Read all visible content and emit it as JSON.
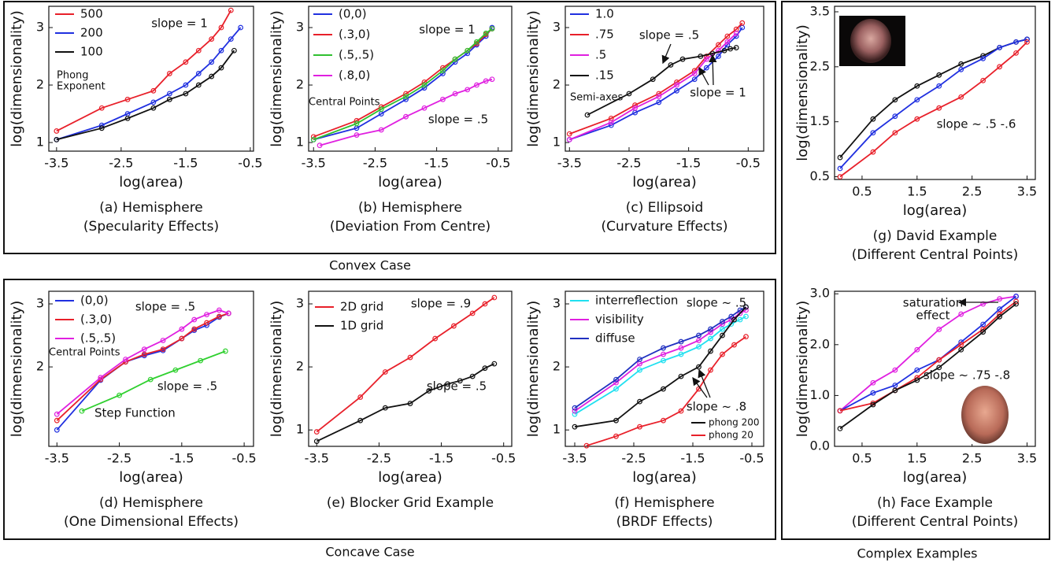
{
  "sections": [
    "Convex Case",
    "Concave Case",
    "Complex Examples"
  ],
  "chart_data": [
    {
      "type": "line",
      "caption": [
        "(a) Hemisphere",
        "(Specularity Effects)"
      ],
      "xlabel": "log(area)",
      "ylabel": "log(dimensionality)",
      "xlim": [
        -3.62,
        -0.45
      ],
      "ylim": [
        0.85,
        3.37
      ],
      "xticks": [
        -3.5,
        -2.5,
        -1.5,
        -0.5
      ],
      "yticks": [
        1,
        2,
        3
      ],
      "legend_title": [
        "Phong",
        "Exponent"
      ],
      "annotations": [
        "slope = 1"
      ],
      "series": [
        {
          "name": "500",
          "color": "#e8202a",
          "x": [
            -3.5,
            -2.8,
            -2.4,
            -2.0,
            -1.75,
            -1.5,
            -1.3,
            -1.1,
            -0.95,
            -0.8
          ],
          "values": [
            1.2,
            1.6,
            1.75,
            1.9,
            2.2,
            2.4,
            2.6,
            2.8,
            3.0,
            3.3
          ]
        },
        {
          "name": "200",
          "color": "#2030e0",
          "x": [
            -3.5,
            -2.8,
            -2.4,
            -2.0,
            -1.75,
            -1.5,
            -1.3,
            -1.1,
            -0.95,
            -0.8,
            -0.65
          ],
          "values": [
            1.05,
            1.3,
            1.5,
            1.7,
            1.85,
            2.0,
            2.2,
            2.4,
            2.6,
            2.8,
            3.0
          ]
        },
        {
          "name": "100",
          "color": "#111111",
          "x": [
            -3.5,
            -2.8,
            -2.4,
            -2.0,
            -1.75,
            -1.5,
            -1.3,
            -1.1,
            -0.95,
            -0.75
          ],
          "values": [
            1.05,
            1.25,
            1.42,
            1.6,
            1.75,
            1.85,
            2.0,
            2.15,
            2.3,
            2.6
          ]
        }
      ]
    },
    {
      "type": "line",
      "caption": [
        "(b) Hemisphere",
        "(Deviation From Centre)"
      ],
      "xlabel": "log(area)",
      "ylabel": "log(dimensionality)",
      "xlim": [
        -3.58,
        -0.28
      ],
      "ylim": [
        0.85,
        3.37
      ],
      "xticks": [
        -3.5,
        -2.5,
        -1.5,
        -0.5
      ],
      "yticks": [
        1,
        2,
        3
      ],
      "legend_title": [
        "Central Points"
      ],
      "annotations": [
        "slope = 1",
        "slope = .5"
      ],
      "series": [
        {
          "name": "(0,0)",
          "color": "#2030e0",
          "x": [
            -3.5,
            -2.8,
            -2.4,
            -2.0,
            -1.7,
            -1.4,
            -1.2,
            -1.0,
            -0.85,
            -0.7,
            -0.6
          ],
          "values": [
            1.05,
            1.25,
            1.5,
            1.75,
            1.95,
            2.2,
            2.4,
            2.55,
            2.7,
            2.85,
            3.0
          ]
        },
        {
          "name": "(.3,0)",
          "color": "#e8202a",
          "x": [
            -3.5,
            -2.8,
            -2.4,
            -2.0,
            -1.7,
            -1.4,
            -1.2,
            -1.0,
            -0.85,
            -0.7,
            -0.6
          ],
          "values": [
            1.1,
            1.38,
            1.62,
            1.85,
            2.05,
            2.3,
            2.45,
            2.6,
            2.72,
            2.88,
            2.98
          ]
        },
        {
          "name": "(.5,.5)",
          "color": "#30c030",
          "x": [
            -3.5,
            -2.8,
            -2.4,
            -2.0,
            -1.7,
            -1.4,
            -1.2,
            -1.0,
            -0.85,
            -0.7,
            -0.6
          ],
          "values": [
            1.05,
            1.33,
            1.58,
            1.8,
            2.0,
            2.25,
            2.45,
            2.6,
            2.75,
            2.9,
            2.98
          ]
        },
        {
          "name": "(.8,0)",
          "color": "#e020e0",
          "x": [
            -3.4,
            -2.8,
            -2.4,
            -2.0,
            -1.7,
            -1.4,
            -1.2,
            -1.0,
            -0.85,
            -0.7,
            -0.6
          ],
          "values": [
            0.95,
            1.13,
            1.22,
            1.45,
            1.6,
            1.75,
            1.85,
            1.92,
            2.0,
            2.07,
            2.1
          ]
        }
      ]
    },
    {
      "type": "line",
      "caption": [
        "(c) Ellipsoid",
        "(Curvature Effects)"
      ],
      "xlabel": "log(area)",
      "ylabel": "log(dimensionality)",
      "xlim": [
        -3.57,
        -0.24
      ],
      "ylim": [
        0.85,
        3.37
      ],
      "xticks": [
        -3.5,
        -2.5,
        -1.5,
        -0.5
      ],
      "yticks": [
        1,
        2,
        3
      ],
      "legend_title": [
        "Semi-axes"
      ],
      "annotations": [
        "slope = .5",
        "slope = 1"
      ],
      "series": [
        {
          "name": "1.0",
          "color": "#2030e0",
          "x": [
            -3.5,
            -2.8,
            -2.4,
            -2.0,
            -1.7,
            -1.4,
            -1.2,
            -1.0,
            -0.85,
            -0.7,
            -0.6
          ],
          "values": [
            1.05,
            1.3,
            1.52,
            1.7,
            1.9,
            2.1,
            2.3,
            2.5,
            2.7,
            2.85,
            3.0
          ]
        },
        {
          "name": ".75",
          "color": "#e8202a",
          "x": [
            -3.5,
            -2.8,
            -2.4,
            -2.0,
            -1.7,
            -1.4,
            -1.2,
            -1.0,
            -0.85,
            -0.7,
            -0.6
          ],
          "values": [
            1.15,
            1.42,
            1.65,
            1.85,
            2.05,
            2.25,
            2.5,
            2.7,
            2.85,
            2.97,
            3.08
          ]
        },
        {
          "name": ".5",
          "color": "#e020e0",
          "x": [
            -3.5,
            -2.8,
            -2.4,
            -2.0,
            -1.7,
            -1.4,
            -1.2,
            -1.0,
            -0.85,
            -0.7
          ],
          "values": [
            1.05,
            1.35,
            1.6,
            1.8,
            2.0,
            2.2,
            2.45,
            2.6,
            2.75,
            2.9
          ]
        },
        {
          "name": ".15",
          "color": "#111111",
          "x": [
            -3.2,
            -2.5,
            -2.1,
            -1.8,
            -1.6,
            -1.3,
            -1.1,
            -0.9,
            -0.8,
            -0.7
          ],
          "values": [
            1.48,
            1.85,
            2.1,
            2.35,
            2.45,
            2.5,
            2.55,
            2.6,
            2.63,
            2.65
          ]
        }
      ]
    },
    {
      "type": "line",
      "caption": [
        "(d) Hemisphere",
        "(One Dimensional Effects)"
      ],
      "xlabel": "log(area)",
      "ylabel": "log(dimensionality)",
      "xlim": [
        -3.63,
        -0.35
      ],
      "ylim": [
        0.74,
        3.2
      ],
      "xticks": [
        -3.5,
        -2.5,
        -1.5,
        -0.5
      ],
      "yticks": [
        2,
        3
      ],
      "legend_title": [
        "Central Points"
      ],
      "annotations": [
        "slope = .5",
        "slope = .5",
        "Step Function"
      ],
      "series": [
        {
          "name": "(0,0)",
          "color": "#2030e0",
          "x": [
            -3.5,
            -2.8,
            -2.4,
            -2.1,
            -1.8,
            -1.5,
            -1.3,
            -1.1,
            -0.9,
            -0.75
          ],
          "values": [
            1.0,
            1.79,
            2.08,
            2.18,
            2.26,
            2.45,
            2.58,
            2.66,
            2.79,
            2.85
          ]
        },
        {
          "name": "(.3,0)",
          "color": "#e8202a",
          "x": [
            -3.5,
            -2.8,
            -2.4,
            -2.1,
            -1.8,
            -1.5,
            -1.3,
            -1.1,
            -0.9,
            -0.75
          ],
          "values": [
            1.15,
            1.8,
            2.08,
            2.2,
            2.28,
            2.45,
            2.6,
            2.7,
            2.8,
            2.85
          ]
        },
        {
          "name": "(.5,.5)",
          "color": "#e020e0",
          "x": [
            -3.5,
            -2.8,
            -2.4,
            -2.1,
            -1.8,
            -1.5,
            -1.3,
            -1.1,
            -0.9,
            -0.75
          ],
          "values": [
            1.25,
            1.83,
            2.12,
            2.28,
            2.42,
            2.6,
            2.75,
            2.83,
            2.9,
            2.85
          ]
        },
        {
          "color": "#30d030",
          "x": [
            -3.1,
            -2.5,
            -2.0,
            -1.6,
            -1.2,
            -0.8
          ],
          "values": [
            1.3,
            1.55,
            1.8,
            1.95,
            2.1,
            2.25
          ]
        }
      ]
    },
    {
      "type": "line",
      "caption": [
        "(e) Blocker Grid Example"
      ],
      "xlabel": "log(area)",
      "ylabel": "log(dimensionality)",
      "xlim": [
        -3.63,
        -0.37
      ],
      "ylim": [
        0.74,
        3.2
      ],
      "xticks": [
        -3.5,
        -2.5,
        -1.5,
        -0.5
      ],
      "yticks": [
        1,
        2,
        3
      ],
      "annotations": [
        "slope = .9",
        "slope = .5"
      ],
      "series": [
        {
          "name": "2D grid",
          "color": "#e8202a",
          "x": [
            -3.5,
            -2.8,
            -2.4,
            -2.0,
            -1.6,
            -1.3,
            -1.0,
            -0.8,
            -0.65
          ],
          "values": [
            0.97,
            1.52,
            1.92,
            2.15,
            2.45,
            2.65,
            2.85,
            3.0,
            3.1
          ]
        },
        {
          "name": "1D grid",
          "color": "#111111",
          "x": [
            -3.5,
            -2.8,
            -2.4,
            -2.0,
            -1.7,
            -1.4,
            -1.2,
            -1.0,
            -0.8,
            -0.65
          ],
          "values": [
            0.82,
            1.15,
            1.35,
            1.42,
            1.62,
            1.73,
            1.78,
            1.85,
            1.98,
            2.05
          ]
        }
      ]
    },
    {
      "type": "line",
      "caption": [
        "(f) Hemisphere",
        "(BRDF Effects)"
      ],
      "xlabel": "log(area)",
      "ylabel": "log(dimensionality)",
      "xlim": [
        -3.66,
        -0.3
      ],
      "ylim": [
        0.74,
        3.2
      ],
      "xticks": [
        -3.5,
        -2.5,
        -1.5,
        -0.5
      ],
      "yticks": [
        1,
        2,
        3
      ],
      "annotations": [
        "slope ~ .5",
        "slope ~ .8"
      ],
      "series": [
        {
          "name": "interreflection",
          "color": "#20e0f0",
          "x": [
            -3.5,
            -2.8,
            -2.4,
            -2.0,
            -1.7,
            -1.4,
            -1.2,
            -1.0,
            -0.85,
            -0.7,
            -0.6
          ],
          "values": [
            1.25,
            1.65,
            1.95,
            2.1,
            2.2,
            2.32,
            2.45,
            2.6,
            2.68,
            2.75,
            2.8
          ]
        },
        {
          "name": "visibility",
          "color": "#e020e0",
          "x": [
            -3.5,
            -2.8,
            -2.4,
            -2.0,
            -1.7,
            -1.4,
            -1.2,
            -1.0,
            -0.85,
            -0.7,
            -0.6
          ],
          "values": [
            1.3,
            1.75,
            2.05,
            2.2,
            2.3,
            2.42,
            2.55,
            2.68,
            2.75,
            2.85,
            2.9
          ]
        },
        {
          "name": "diffuse",
          "color": "#2030c0",
          "x": [
            -3.5,
            -2.8,
            -2.4,
            -2.0,
            -1.7,
            -1.4,
            -1.2,
            -1.0,
            -0.85,
            -0.7,
            -0.6
          ],
          "values": [
            1.35,
            1.8,
            2.12,
            2.3,
            2.4,
            2.5,
            2.6,
            2.72,
            2.8,
            2.9,
            2.95
          ]
        },
        {
          "name": "phong 200",
          "color": "#111111",
          "x": [
            -3.5,
            -2.8,
            -2.4,
            -2.0,
            -1.7,
            -1.4,
            -1.2,
            -1.0,
            -0.8,
            -0.6
          ],
          "values": [
            1.05,
            1.15,
            1.45,
            1.65,
            1.85,
            2.0,
            2.25,
            2.5,
            2.75,
            2.95
          ]
        },
        {
          "name": "phong 20",
          "color": "#e8202a",
          "x": [
            -3.3,
            -2.8,
            -2.4,
            -2.0,
            -1.7,
            -1.4,
            -1.2,
            -1.0,
            -0.8,
            -0.6
          ],
          "values": [
            0.75,
            0.9,
            1.05,
            1.15,
            1.3,
            1.65,
            1.95,
            2.2,
            2.35,
            2.48
          ]
        }
      ]
    },
    {
      "type": "line",
      "caption": [
        "(g) David Example",
        "(Different Central Points)"
      ],
      "xlabel": "log(area)",
      "ylabel": "log(dimensionality)",
      "xlim": [
        0,
        3.65
      ],
      "ylim": [
        0.45,
        3.6
      ],
      "xticks": [
        0.5,
        1.5,
        2.5,
        3.5
      ],
      "yticks": [
        0.5,
        1.5,
        2.5,
        3.5
      ],
      "annotations": [
        "slope ~ .5 -.6"
      ],
      "series": [
        {
          "color": "#111111",
          "x": [
            0.1,
            0.7,
            1.1,
            1.5,
            1.9,
            2.3,
            2.7,
            3.0,
            3.3,
            3.5
          ],
          "values": [
            0.85,
            1.55,
            1.9,
            2.15,
            2.35,
            2.55,
            2.7,
            2.85,
            2.95,
            3.0
          ]
        },
        {
          "color": "#2030e0",
          "x": [
            0.1,
            0.7,
            1.1,
            1.5,
            1.9,
            2.3,
            2.7,
            3.0,
            3.3,
            3.5
          ],
          "values": [
            0.65,
            1.3,
            1.6,
            1.9,
            2.15,
            2.45,
            2.65,
            2.85,
            2.95,
            3.0
          ]
        },
        {
          "color": "#e8202a",
          "x": [
            0.1,
            0.7,
            1.1,
            1.5,
            1.9,
            2.3,
            2.7,
            3.0,
            3.3,
            3.5
          ],
          "values": [
            0.5,
            0.95,
            1.3,
            1.55,
            1.75,
            1.95,
            2.25,
            2.5,
            2.75,
            2.95
          ]
        }
      ]
    },
    {
      "type": "line",
      "caption": [
        "(h) Face Example",
        "(Different Central Points)"
      ],
      "xlabel": "log(area)",
      "ylabel": "log(dimensionality)",
      "xlim": [
        0,
        3.65
      ],
      "ylim": [
        0,
        3.05
      ],
      "xticks": [
        0.5,
        1.5,
        2.5,
        3.5
      ],
      "yticks": [
        {
          "value": 0,
          "label": "0.0"
        },
        {
          "value": 1,
          "label": "1.0"
        },
        {
          "value": 2,
          "label": "2.0"
        },
        {
          "value": 3,
          "label": "3.0"
        }
      ],
      "annotations": [
        "saturation",
        "effect",
        "slope ~ .75 -.8"
      ],
      "series": [
        {
          "color": "#e020e0",
          "x": [
            0.1,
            0.7,
            1.1,
            1.5,
            1.9,
            2.3,
            2.7,
            3.0,
            3.3
          ],
          "values": [
            0.7,
            1.25,
            1.5,
            1.9,
            2.3,
            2.6,
            2.8,
            2.9,
            2.95
          ]
        },
        {
          "color": "#2030e0",
          "x": [
            0.1,
            0.7,
            1.1,
            1.5,
            1.9,
            2.3,
            2.7,
            3.0,
            3.3
          ],
          "values": [
            0.7,
            1.05,
            1.2,
            1.5,
            1.7,
            2.05,
            2.4,
            2.7,
            2.95
          ]
        },
        {
          "color": "#e8202a",
          "x": [
            0.1,
            0.7,
            1.1,
            1.5,
            1.9,
            2.3,
            2.7,
            3.0,
            3.3
          ],
          "values": [
            0.7,
            0.85,
            1.1,
            1.35,
            1.7,
            2.0,
            2.3,
            2.6,
            2.85
          ]
        },
        {
          "color": "#111111",
          "x": [
            0.1,
            0.7,
            1.1,
            1.5,
            1.9,
            2.3,
            2.7,
            3.0,
            3.3
          ],
          "values": [
            0.35,
            0.82,
            1.1,
            1.3,
            1.55,
            1.9,
            2.25,
            2.55,
            2.8
          ]
        }
      ]
    }
  ]
}
